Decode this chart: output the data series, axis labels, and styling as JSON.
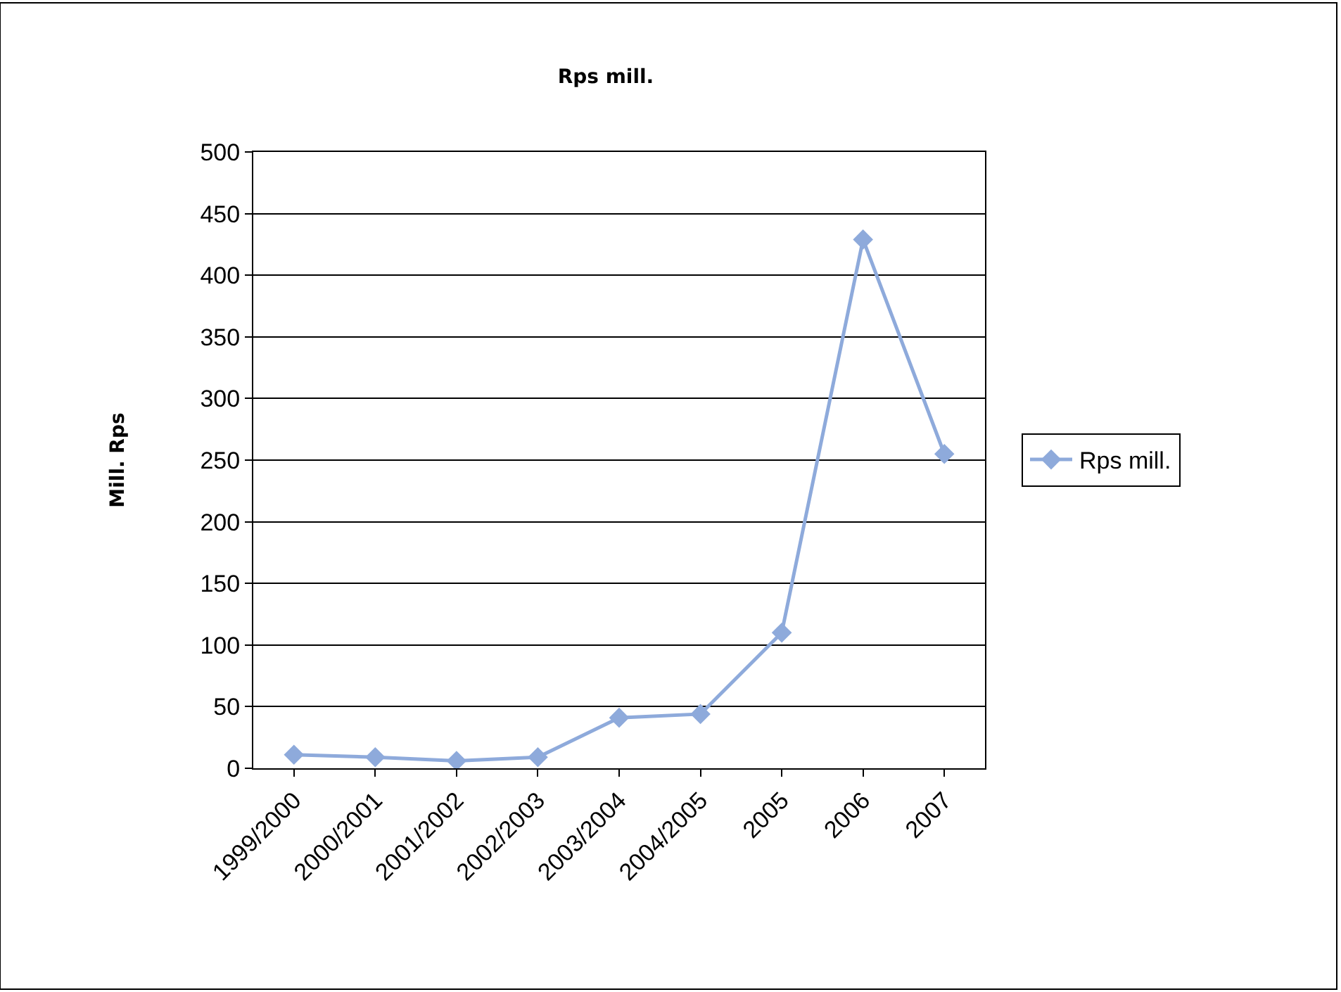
{
  "chart_data": {
    "type": "line",
    "title": "Rps mill.",
    "ylabel": "Mill. Rps",
    "categories": [
      "1999/2000",
      "2000/2001",
      "2001/2002",
      "2002/2003",
      "2003/2004",
      "2004/2005",
      "2005",
      "2006",
      "2007"
    ],
    "series": [
      {
        "name": "Rps mill.",
        "color": "#8eaadb",
        "values": [
          11,
          9,
          6,
          9,
          41,
          44,
          110,
          429,
          255
        ]
      }
    ],
    "ylim": [
      0,
      500
    ],
    "yticks": [
      0,
      50,
      100,
      150,
      200,
      250,
      300,
      350,
      400,
      450,
      500
    ],
    "grid": "y",
    "legend": "right",
    "marker": "diamond",
    "line_style": "solid"
  }
}
